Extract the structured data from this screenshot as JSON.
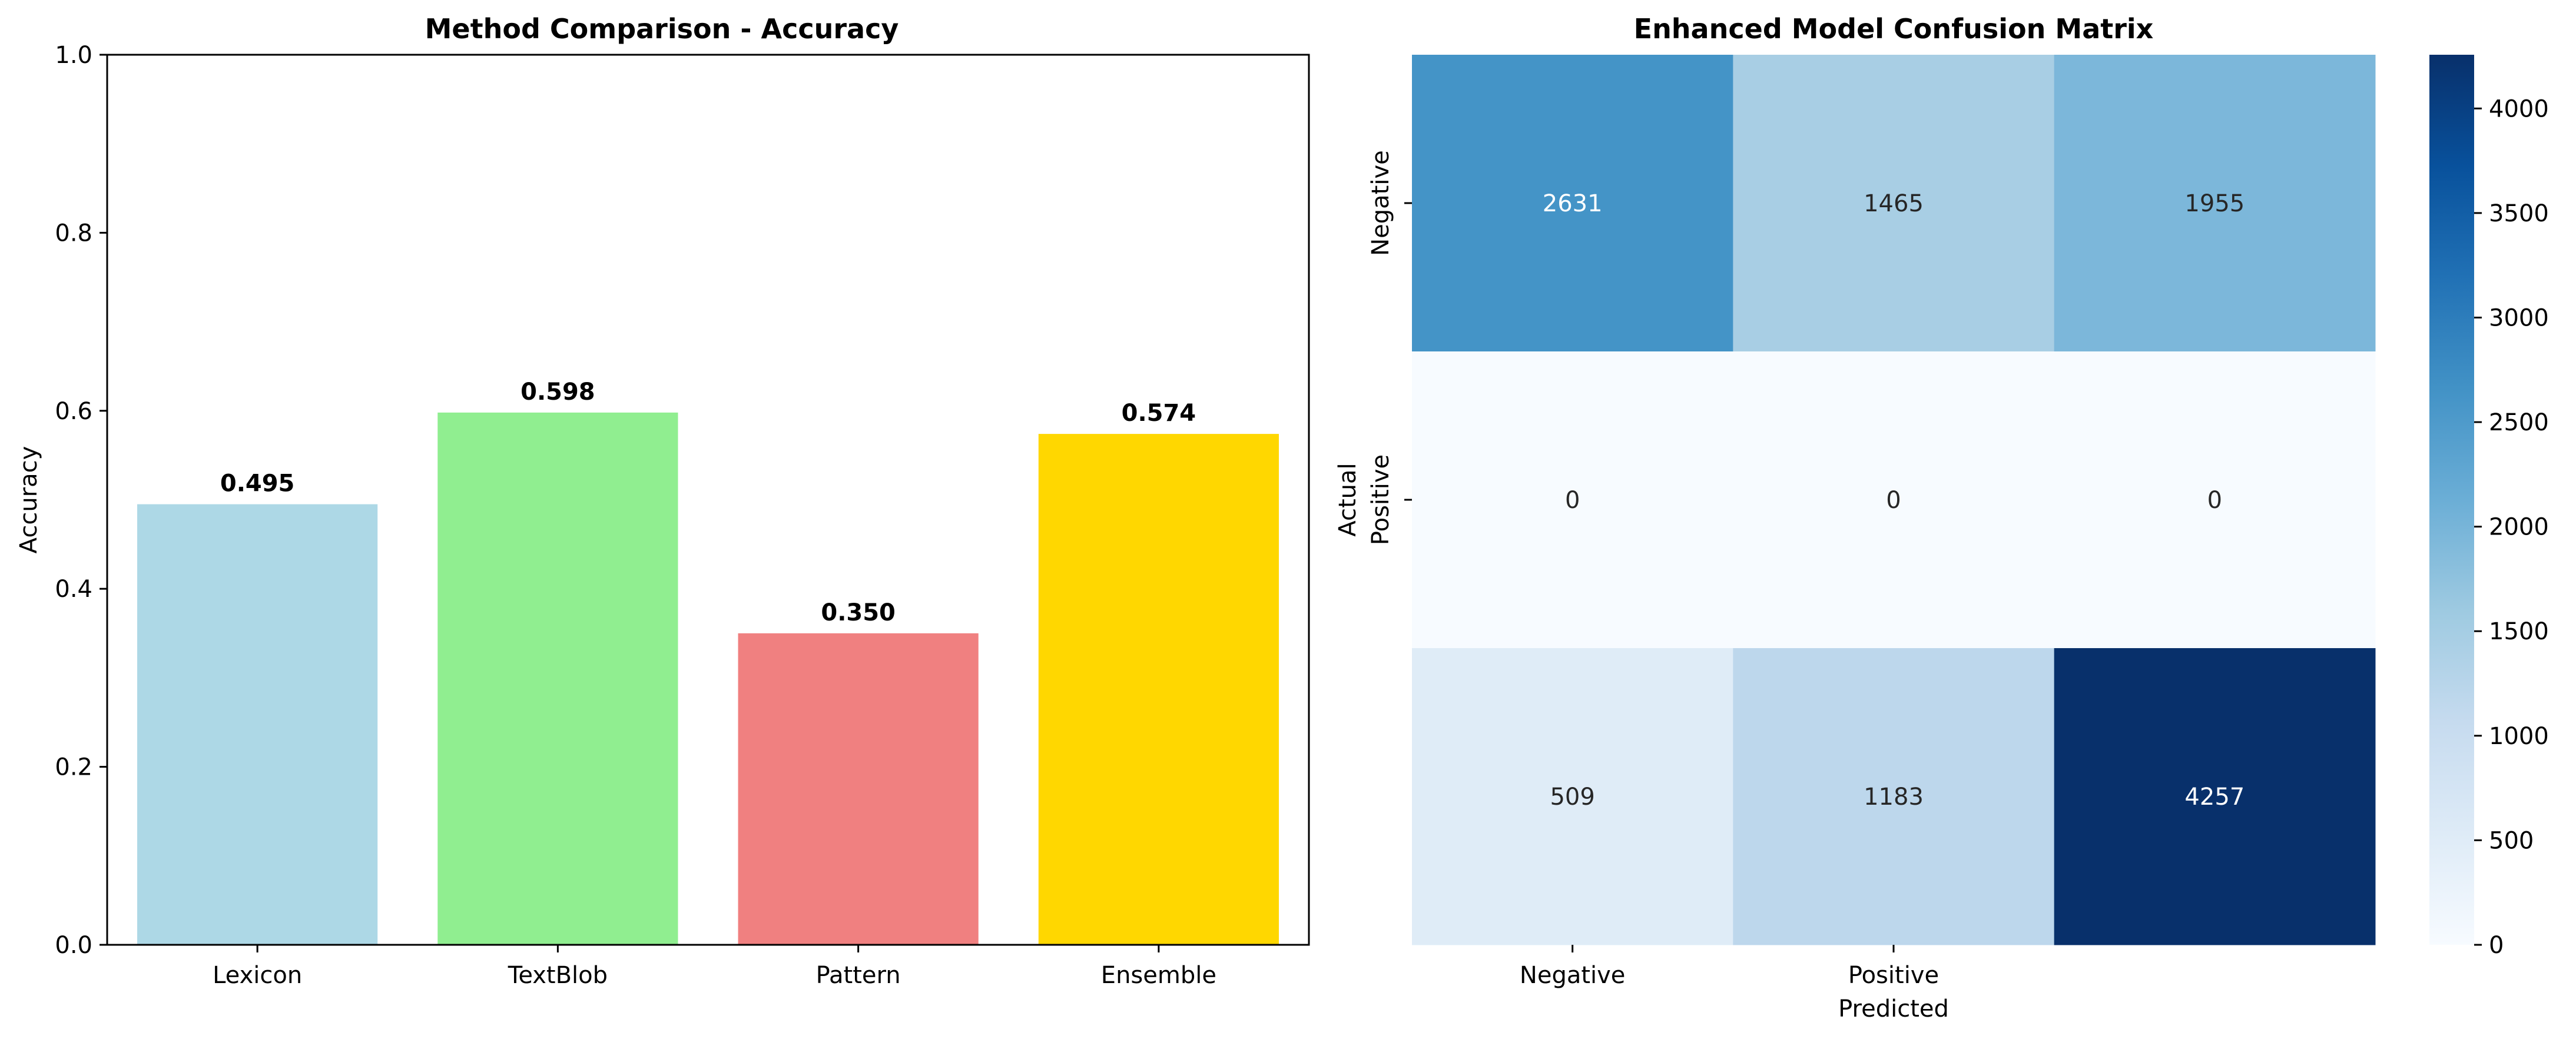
{
  "chart_data": [
    {
      "type": "bar",
      "title": "Method Comparison - Accuracy",
      "xlabel": "",
      "ylabel": "Accuracy",
      "categories": [
        "Lexicon",
        "TextBlob",
        "Pattern",
        "Ensemble"
      ],
      "values": [
        0.495,
        0.598,
        0.35,
        0.574
      ],
      "value_labels": [
        "0.495",
        "0.598",
        "0.350",
        "0.574"
      ],
      "colors": [
        "#add8e6",
        "#90ee90",
        "#f08080",
        "#ffd700"
      ],
      "ylim": [
        0,
        1.0
      ],
      "yticks": [
        0.0,
        0.2,
        0.4,
        0.6,
        0.8,
        1.0
      ],
      "ytick_labels": [
        "0.0",
        "0.2",
        "0.4",
        "0.6",
        "0.8",
        "1.0"
      ],
      "grid": false
    },
    {
      "type": "heatmap",
      "title": "Enhanced Model Confusion Matrix",
      "xlabel": "Predicted",
      "ylabel": "Actual",
      "x_tick_labels": [
        "Negative",
        "Positive",
        ""
      ],
      "y_tick_labels": [
        "Negative",
        "Positive",
        ""
      ],
      "values": [
        [
          2631,
          1465,
          1955
        ],
        [
          0,
          0,
          0
        ],
        [
          509,
          1183,
          4257
        ]
      ],
      "colormap": "Blues",
      "vmin": 0,
      "vmax": 4257,
      "colorbar_ticks": [
        0,
        500,
        1000,
        1500,
        2000,
        2500,
        3000,
        3500,
        4000
      ],
      "colorbar_tick_labels": [
        "0",
        "500",
        "1000",
        "1500",
        "2000",
        "2500",
        "3000",
        "3500",
        "4000"
      ]
    }
  ]
}
